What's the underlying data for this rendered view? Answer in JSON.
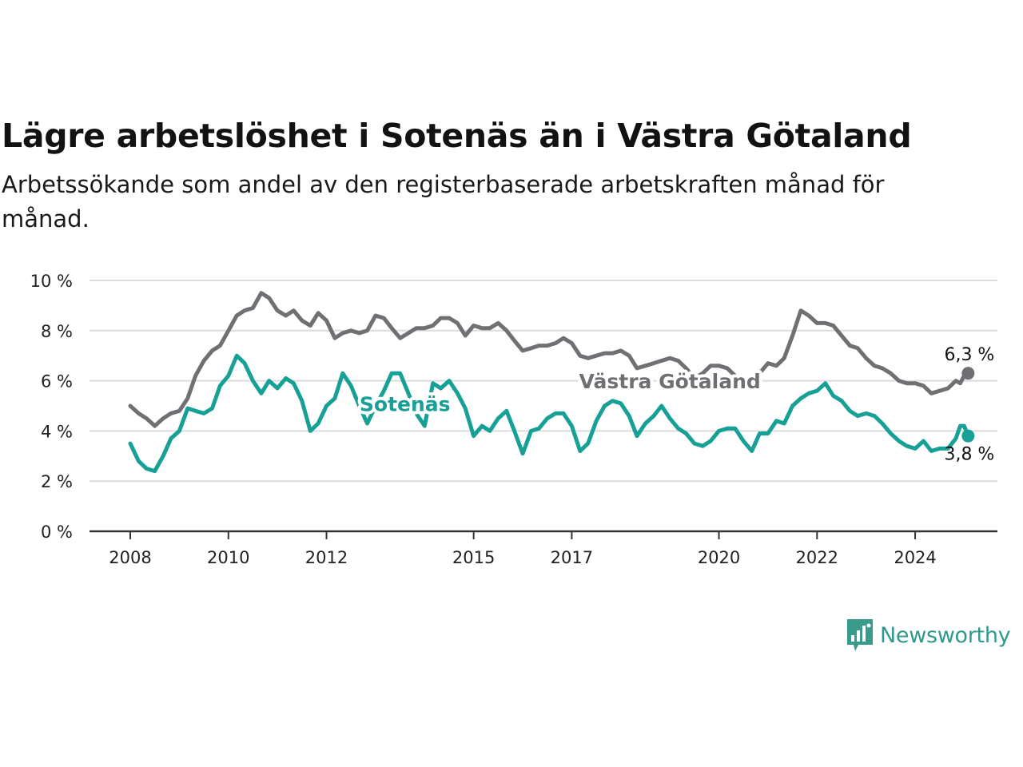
{
  "header": {
    "title": "Lägre arbetslöshet i Sotenäs än i Västra Götaland",
    "subtitle": "Arbetssökande som andel av den registerbaserade arbetskraften månad för månad."
  },
  "brand": {
    "name": "Newsworthy",
    "icon": "newsworthy-logo-icon",
    "color": "#3a9a8c"
  },
  "chart_data": {
    "type": "line",
    "title": "Lägre arbetslöshet i Sotenäs än i Västra Götaland",
    "subtitle": "Arbetssökande som andel av den registerbaserade arbetskraften månad för månad.",
    "xlabel": "",
    "ylabel": "",
    "x_range": [
      2008.0,
      2024.83
    ],
    "ylim": [
      0,
      10
    ],
    "y_ticks": [
      0,
      2,
      4,
      6,
      8,
      10
    ],
    "y_tick_labels": [
      "0 %",
      "2 %",
      "4 %",
      "6 %",
      "8 %",
      "10 %"
    ],
    "x_ticks": [
      2008,
      2010,
      2012,
      2015,
      2017,
      2020,
      2022,
      2024
    ],
    "x_tick_labels": [
      "2008",
      "2010",
      "2012",
      "2015",
      "2017",
      "2020",
      "2022",
      "2024"
    ],
    "grid": true,
    "legend": "direct labels on lines",
    "series": [
      {
        "name": "Västra Götaland",
        "color": "#707074",
        "end_label": "6,3 %",
        "points": [
          [
            2008.0,
            5.0
          ],
          [
            2008.17,
            4.7
          ],
          [
            2008.33,
            4.5
          ],
          [
            2008.5,
            4.2
          ],
          [
            2008.67,
            4.5
          ],
          [
            2008.83,
            4.7
          ],
          [
            2009.0,
            4.8
          ],
          [
            2009.17,
            5.3
          ],
          [
            2009.33,
            6.2
          ],
          [
            2009.5,
            6.8
          ],
          [
            2009.67,
            7.2
          ],
          [
            2009.83,
            7.4
          ],
          [
            2010.0,
            8.0
          ],
          [
            2010.17,
            8.6
          ],
          [
            2010.33,
            8.8
          ],
          [
            2010.5,
            8.9
          ],
          [
            2010.67,
            9.5
          ],
          [
            2010.83,
            9.3
          ],
          [
            2011.0,
            8.8
          ],
          [
            2011.17,
            8.6
          ],
          [
            2011.33,
            8.8
          ],
          [
            2011.5,
            8.4
          ],
          [
            2011.67,
            8.2
          ],
          [
            2011.83,
            8.7
          ],
          [
            2012.0,
            8.4
          ],
          [
            2012.17,
            7.7
          ],
          [
            2012.33,
            7.9
          ],
          [
            2012.5,
            8.0
          ],
          [
            2012.67,
            7.9
          ],
          [
            2012.83,
            8.0
          ],
          [
            2013.0,
            8.6
          ],
          [
            2013.17,
            8.5
          ],
          [
            2013.33,
            8.1
          ],
          [
            2013.5,
            7.7
          ],
          [
            2013.67,
            7.9
          ],
          [
            2013.83,
            8.1
          ],
          [
            2014.0,
            8.1
          ],
          [
            2014.17,
            8.2
          ],
          [
            2014.33,
            8.5
          ],
          [
            2014.5,
            8.5
          ],
          [
            2014.67,
            8.3
          ],
          [
            2014.83,
            7.8
          ],
          [
            2015.0,
            8.2
          ],
          [
            2015.17,
            8.1
          ],
          [
            2015.33,
            8.1
          ],
          [
            2015.5,
            8.3
          ],
          [
            2015.67,
            8.0
          ],
          [
            2015.83,
            7.6
          ],
          [
            2016.0,
            7.2
          ],
          [
            2016.17,
            7.3
          ],
          [
            2016.33,
            7.4
          ],
          [
            2016.5,
            7.4
          ],
          [
            2016.67,
            7.5
          ],
          [
            2016.83,
            7.7
          ],
          [
            2017.0,
            7.5
          ],
          [
            2017.17,
            7.0
          ],
          [
            2017.33,
            6.9
          ],
          [
            2017.5,
            7.0
          ],
          [
            2017.67,
            7.1
          ],
          [
            2017.83,
            7.1
          ],
          [
            2018.0,
            7.2
          ],
          [
            2018.17,
            7.0
          ],
          [
            2018.33,
            6.5
          ],
          [
            2018.5,
            6.6
          ],
          [
            2018.67,
            6.7
          ],
          [
            2018.83,
            6.8
          ],
          [
            2019.0,
            6.9
          ],
          [
            2019.17,
            6.8
          ],
          [
            2019.33,
            6.5
          ],
          [
            2019.5,
            6.1
          ],
          [
            2019.67,
            6.3
          ],
          [
            2019.83,
            6.6
          ],
          [
            2020.0,
            6.6
          ],
          [
            2020.17,
            6.5
          ],
          [
            2020.33,
            6.2
          ],
          [
            2020.5,
            6.0
          ],
          [
            2020.67,
            6.0
          ],
          [
            2020.83,
            6.3
          ],
          [
            2021.0,
            6.7
          ],
          [
            2021.17,
            6.6
          ],
          [
            2021.33,
            6.9
          ],
          [
            2021.5,
            7.8
          ],
          [
            2021.67,
            8.8
          ],
          [
            2021.83,
            8.6
          ],
          [
            2022.0,
            8.3
          ],
          [
            2022.17,
            8.3
          ],
          [
            2022.33,
            8.2
          ],
          [
            2022.5,
            7.8
          ],
          [
            2022.67,
            7.4
          ],
          [
            2022.83,
            7.3
          ],
          [
            2023.0,
            6.9
          ],
          [
            2023.17,
            6.6
          ],
          [
            2023.33,
            6.5
          ],
          [
            2023.5,
            6.3
          ],
          [
            2023.67,
            6.0
          ],
          [
            2023.83,
            5.9
          ],
          [
            2024.0,
            5.9
          ],
          [
            2024.17,
            5.8
          ],
          [
            2024.33,
            5.5
          ],
          [
            2024.5,
            5.6
          ],
          [
            2024.67,
            5.7
          ],
          [
            2024.83,
            6.0
          ],
          [
            2024.92,
            5.9
          ],
          [
            2025.0,
            6.2
          ],
          [
            2025.08,
            6.3
          ]
        ]
      },
      {
        "name": "Sotenäs",
        "color": "#16a096",
        "end_label": "3,8 %",
        "points": [
          [
            2008.0,
            3.5
          ],
          [
            2008.17,
            2.8
          ],
          [
            2008.33,
            2.5
          ],
          [
            2008.5,
            2.4
          ],
          [
            2008.67,
            3.0
          ],
          [
            2008.83,
            3.7
          ],
          [
            2009.0,
            4.0
          ],
          [
            2009.17,
            4.9
          ],
          [
            2009.33,
            4.8
          ],
          [
            2009.5,
            4.7
          ],
          [
            2009.67,
            4.9
          ],
          [
            2009.83,
            5.8
          ],
          [
            2010.0,
            6.2
          ],
          [
            2010.17,
            7.0
          ],
          [
            2010.33,
            6.7
          ],
          [
            2010.5,
            6.0
          ],
          [
            2010.67,
            5.5
          ],
          [
            2010.83,
            6.0
          ],
          [
            2011.0,
            5.7
          ],
          [
            2011.17,
            6.1
          ],
          [
            2011.33,
            5.9
          ],
          [
            2011.5,
            5.2
          ],
          [
            2011.67,
            4.0
          ],
          [
            2011.83,
            4.3
          ],
          [
            2012.0,
            5.0
          ],
          [
            2012.17,
            5.3
          ],
          [
            2012.33,
            6.3
          ],
          [
            2012.5,
            5.8
          ],
          [
            2012.67,
            5.0
          ],
          [
            2012.83,
            4.3
          ],
          [
            2013.0,
            5.0
          ],
          [
            2013.17,
            5.6
          ],
          [
            2013.33,
            6.3
          ],
          [
            2013.5,
            6.3
          ],
          [
            2013.67,
            5.5
          ],
          [
            2013.83,
            4.7
          ],
          [
            2014.0,
            4.2
          ],
          [
            2014.17,
            5.9
          ],
          [
            2014.33,
            5.7
          ],
          [
            2014.5,
            6.0
          ],
          [
            2014.67,
            5.5
          ],
          [
            2014.83,
            4.9
          ],
          [
            2015.0,
            3.8
          ],
          [
            2015.17,
            4.2
          ],
          [
            2015.33,
            4.0
          ],
          [
            2015.5,
            4.5
          ],
          [
            2015.67,
            4.8
          ],
          [
            2015.83,
            4.0
          ],
          [
            2016.0,
            3.1
          ],
          [
            2016.17,
            4.0
          ],
          [
            2016.33,
            4.1
          ],
          [
            2016.5,
            4.5
          ],
          [
            2016.67,
            4.7
          ],
          [
            2016.83,
            4.7
          ],
          [
            2017.0,
            4.2
          ],
          [
            2017.17,
            3.2
          ],
          [
            2017.33,
            3.5
          ],
          [
            2017.5,
            4.4
          ],
          [
            2017.67,
            5.0
          ],
          [
            2017.83,
            5.2
          ],
          [
            2018.0,
            5.1
          ],
          [
            2018.17,
            4.6
          ],
          [
            2018.33,
            3.8
          ],
          [
            2018.5,
            4.3
          ],
          [
            2018.67,
            4.6
          ],
          [
            2018.83,
            5.0
          ],
          [
            2019.0,
            4.5
          ],
          [
            2019.17,
            4.1
          ],
          [
            2019.33,
            3.9
          ],
          [
            2019.5,
            3.5
          ],
          [
            2019.67,
            3.4
          ],
          [
            2019.83,
            3.6
          ],
          [
            2020.0,
            4.0
          ],
          [
            2020.17,
            4.1
          ],
          [
            2020.33,
            4.1
          ],
          [
            2020.5,
            3.6
          ],
          [
            2020.67,
            3.2
          ],
          [
            2020.83,
            3.9
          ],
          [
            2021.0,
            3.9
          ],
          [
            2021.17,
            4.4
          ],
          [
            2021.33,
            4.3
          ],
          [
            2021.5,
            5.0
          ],
          [
            2021.67,
            5.3
          ],
          [
            2021.83,
            5.5
          ],
          [
            2022.0,
            5.6
          ],
          [
            2022.17,
            5.9
          ],
          [
            2022.33,
            5.4
          ],
          [
            2022.5,
            5.2
          ],
          [
            2022.67,
            4.8
          ],
          [
            2022.83,
            4.6
          ],
          [
            2023.0,
            4.7
          ],
          [
            2023.17,
            4.6
          ],
          [
            2023.33,
            4.3
          ],
          [
            2023.5,
            3.9
          ],
          [
            2023.67,
            3.6
          ],
          [
            2023.83,
            3.4
          ],
          [
            2024.0,
            3.3
          ],
          [
            2024.17,
            3.6
          ],
          [
            2024.33,
            3.2
          ],
          [
            2024.5,
            3.3
          ],
          [
            2024.67,
            3.3
          ],
          [
            2024.83,
            3.7
          ],
          [
            2024.92,
            4.2
          ],
          [
            2025.0,
            4.2
          ],
          [
            2025.08,
            3.8
          ]
        ]
      }
    ]
  }
}
